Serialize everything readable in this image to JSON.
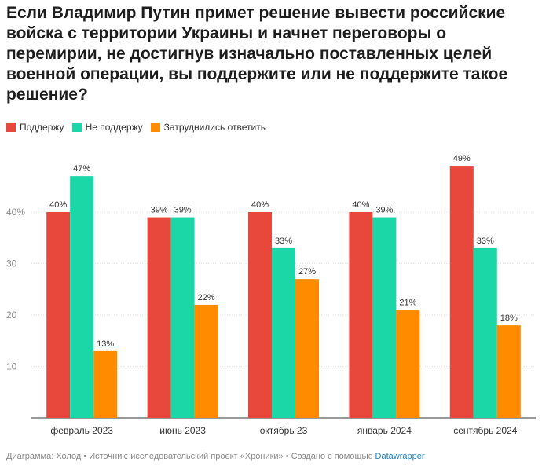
{
  "header": {
    "title": "Если Владимир Путин примет решение вывести российские войска с территории Украины и начнет переговоры о перемирии, не достигнув изначально поставленных целей военной операции, вы поддержите или не поддержите такое решение?"
  },
  "legend": {
    "items": [
      {
        "label": "Поддержу",
        "color": "#e8473c"
      },
      {
        "label": "Не поддержу",
        "color": "#1bd6a7"
      },
      {
        "label": "Затруднились ответить",
        "color": "#ff8c00"
      }
    ]
  },
  "chart_data": {
    "type": "bar",
    "title": "Если Владимир Путин примет решение вывести российские войска с территории Украины и начнет переговоры о перемирии, не достигнув изначально поставленных целей военной операции, вы поддержите или не поддержите такое решение?",
    "categories": [
      "февраль 2023",
      "июнь 2023",
      "октябрь 23",
      "январь 2024",
      "сентябрь 2024"
    ],
    "series": [
      {
        "name": "Поддержу",
        "color": "#e8473c",
        "values": [
          40,
          39,
          40,
          40,
          49
        ]
      },
      {
        "name": "Не поддержу",
        "color": "#1bd6a7",
        "values": [
          47,
          39,
          33,
          39,
          33
        ]
      },
      {
        "name": "Затруднились ответить",
        "color": "#ff8c00",
        "values": [
          13,
          22,
          27,
          21,
          18
        ]
      }
    ],
    "value_suffix": "%",
    "yticks": [
      {
        "value": 10,
        "label": "10"
      },
      {
        "value": 20,
        "label": "20"
      },
      {
        "value": 30,
        "label": "30"
      },
      {
        "value": 40,
        "label": "40%"
      }
    ],
    "ylim": [
      0,
      50
    ],
    "grid": true,
    "legend_position": "top-left",
    "xlabel": "",
    "ylabel": ""
  },
  "footer": {
    "text": "Диаграмма: Холод • Источник: исследовательский проект «Хроники» • Создано с помощью",
    "link": "Datawrapper"
  }
}
